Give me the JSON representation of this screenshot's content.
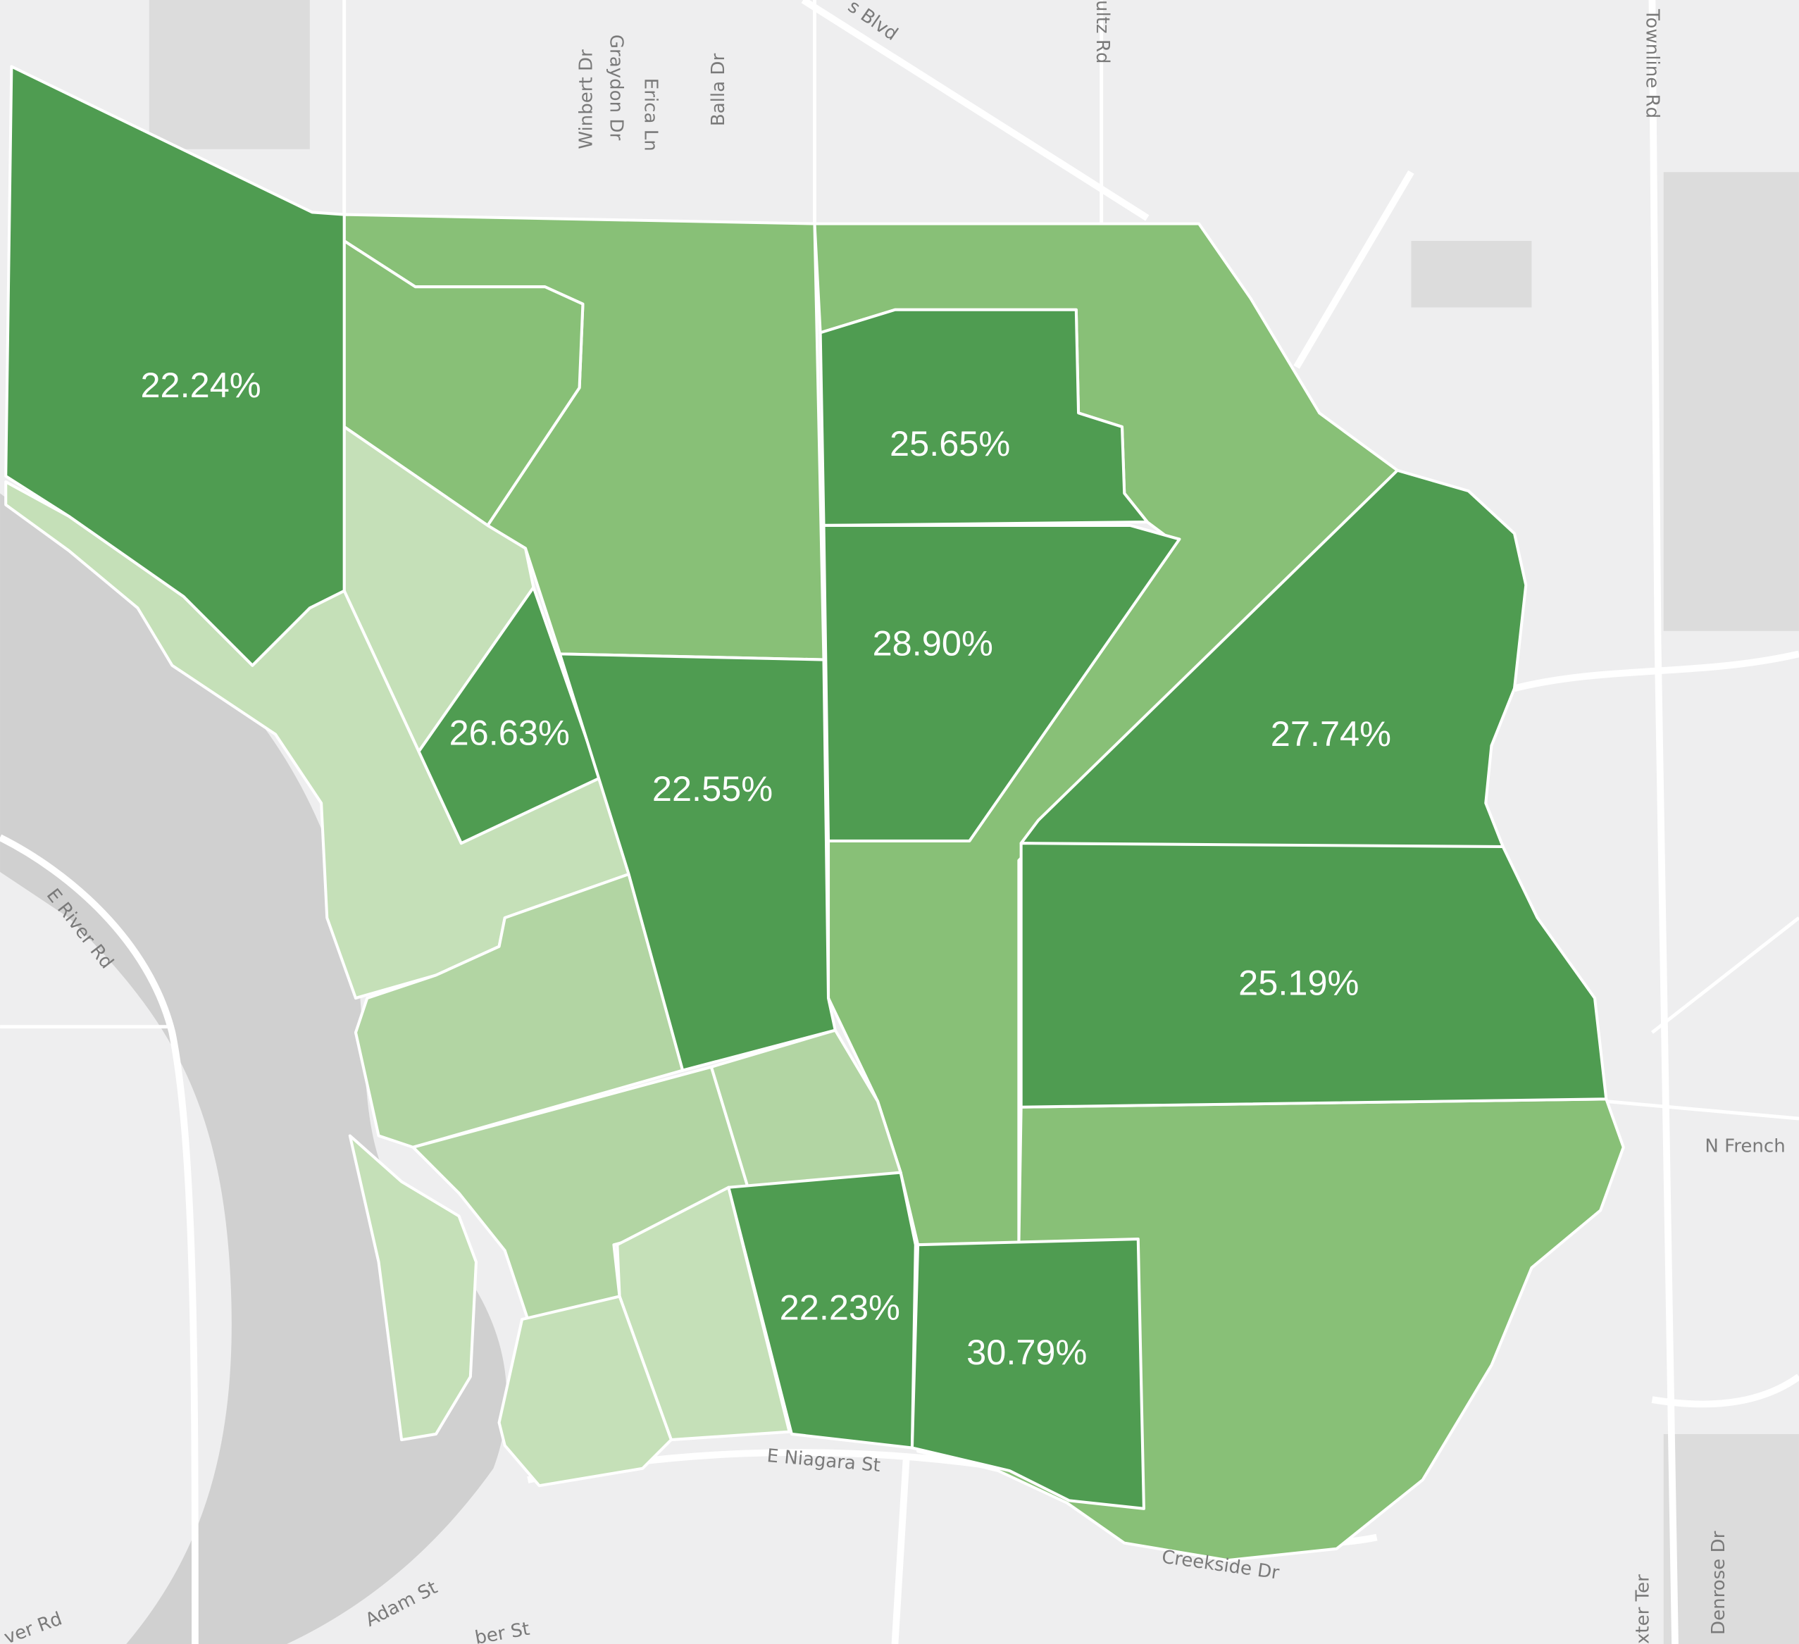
{
  "streets": [
    "Winbert Dr",
    "Graydon Dr",
    "Erica Ln",
    "Balla Dr",
    "s Blvd",
    "ultz Rd",
    "Townline Rd",
    "E River Rd",
    "N French",
    "E Niagara St",
    "Creekside Dr",
    "Adam St",
    "ver Rd",
    "ber St",
    "xter Ter",
    "Denrose Dr"
  ],
  "regions": {
    "values": [
      22.24,
      25.65,
      28.9,
      26.63,
      22.55,
      27.74,
      25.19,
      22.23,
      30.79
    ],
    "value_labels": [
      "22.24%",
      "25.65%",
      "28.90%",
      "26.63%",
      "22.55%",
      "27.74%",
      "25.19%",
      "22.23%",
      "30.79%"
    ]
  }
}
